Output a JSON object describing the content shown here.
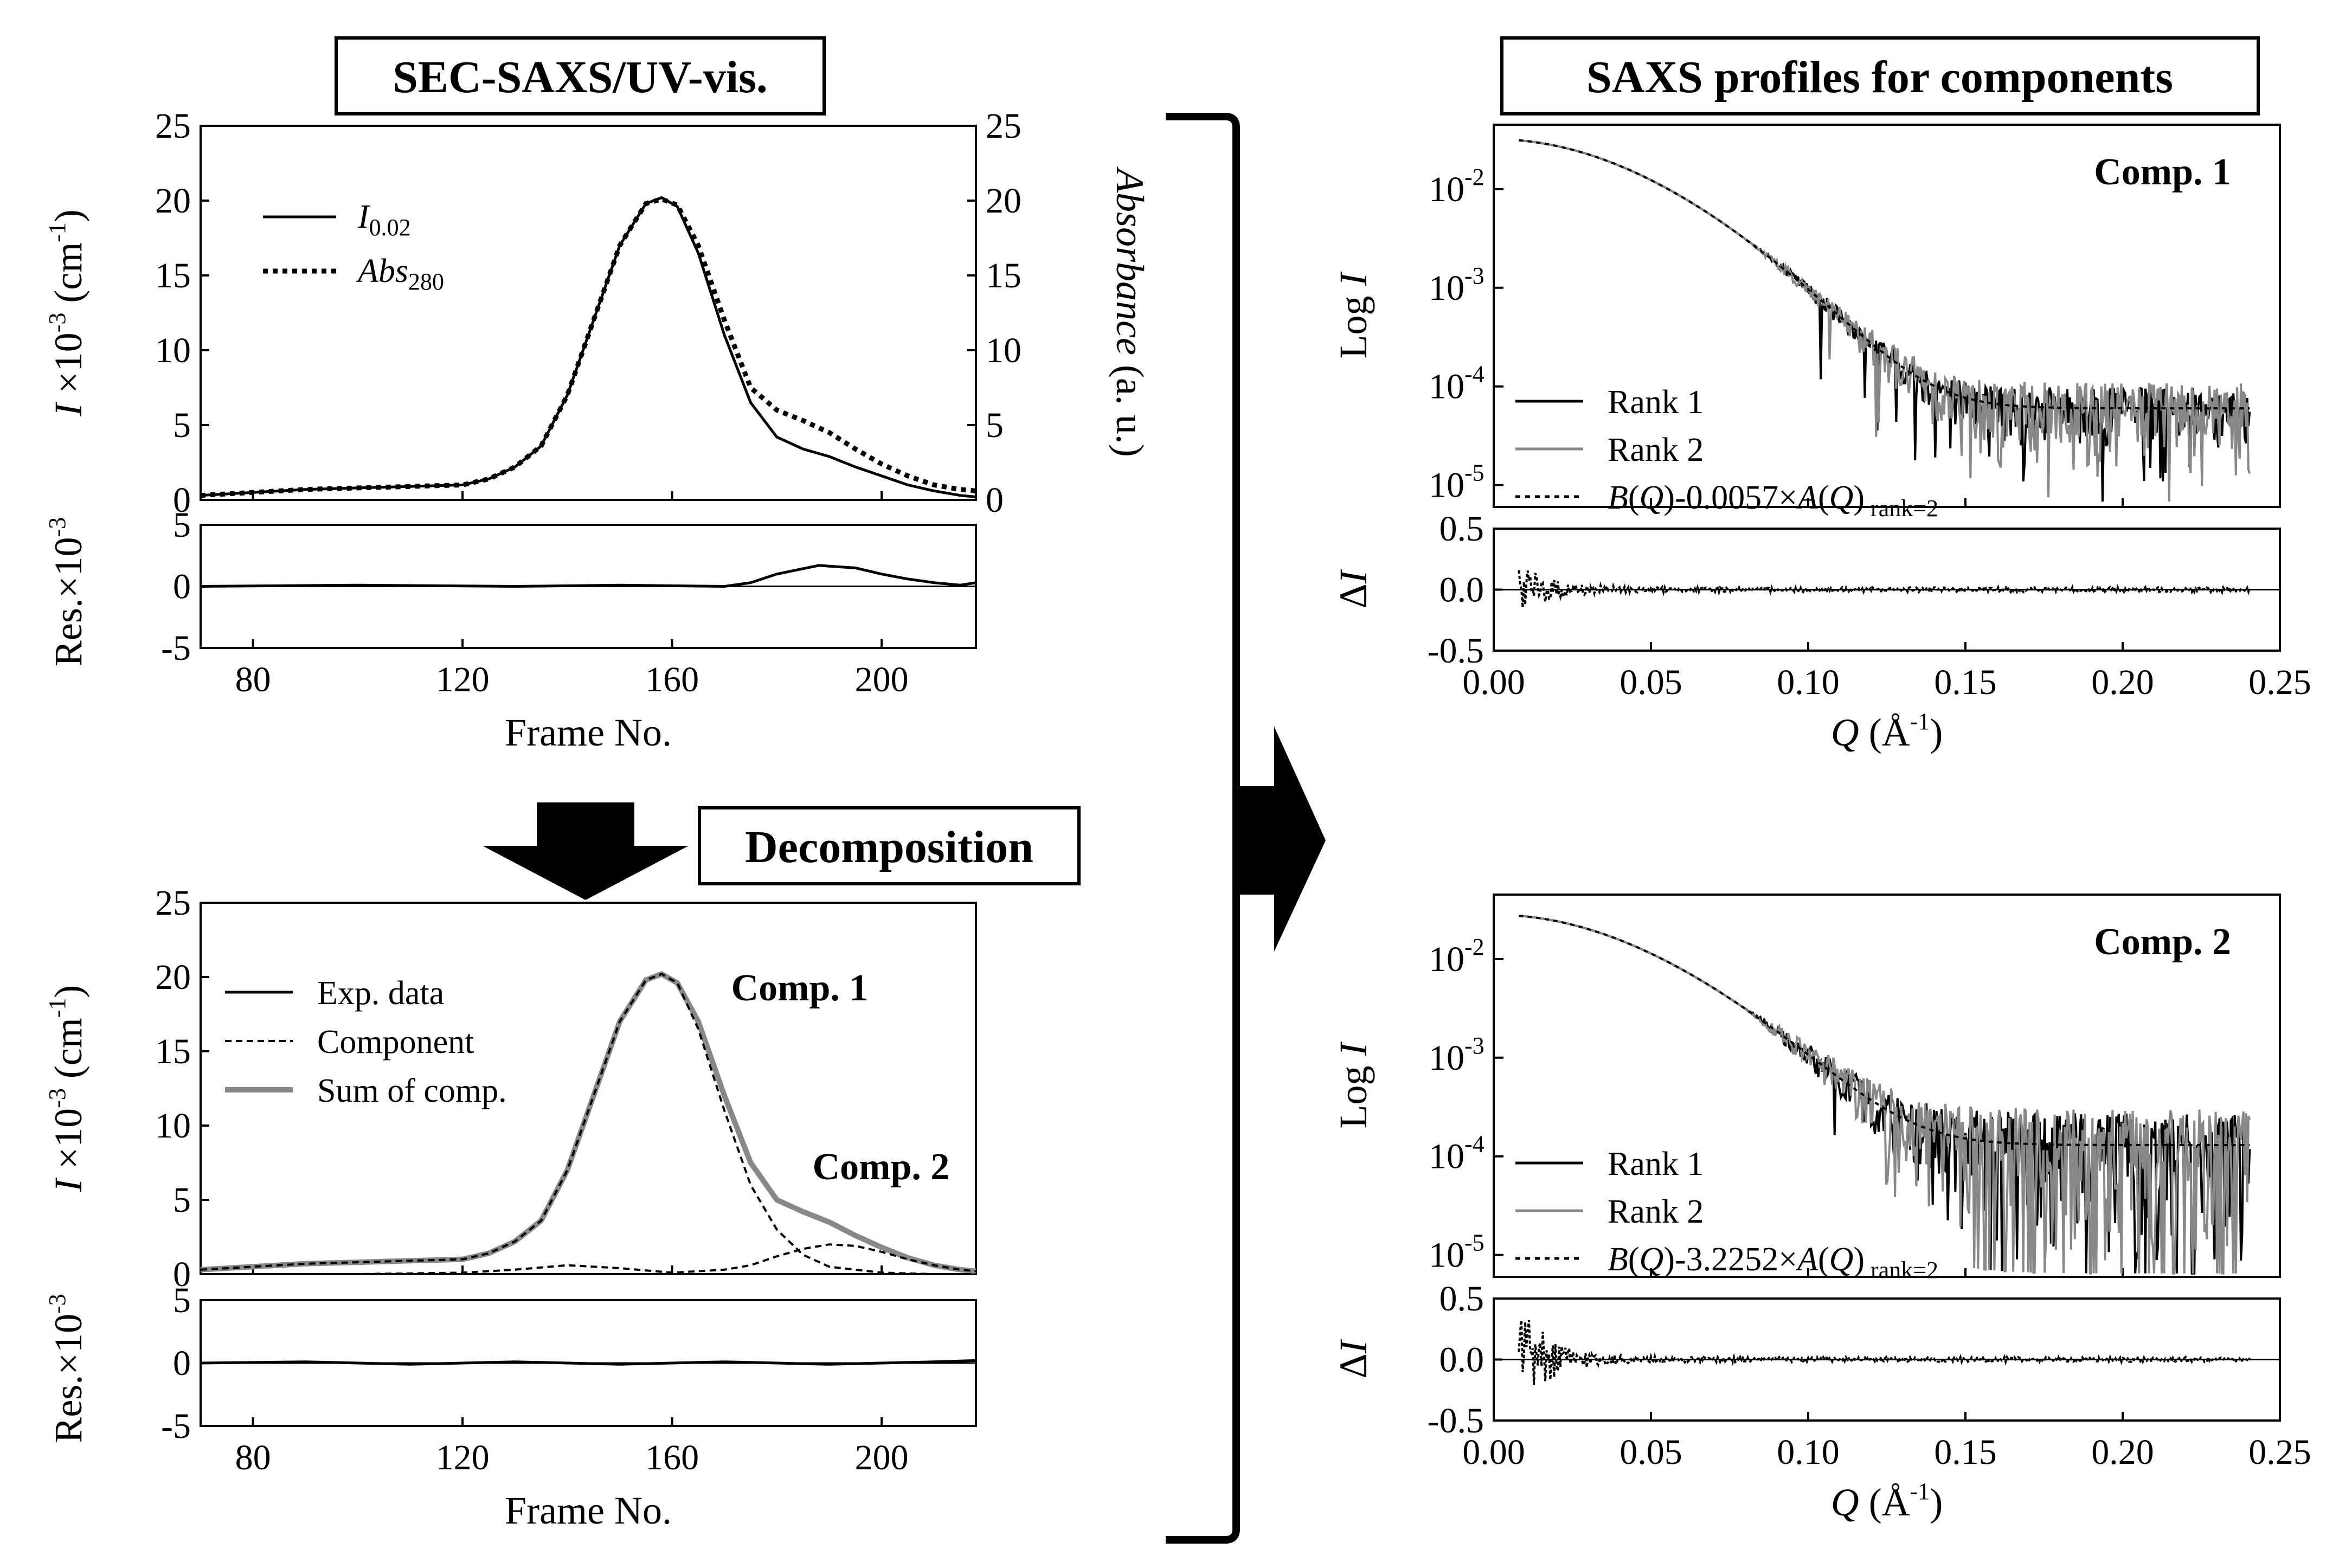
{
  "panel_titles": {
    "sec_saxs": "SEC-SAXS/UV-vis.",
    "decomposition": "Decomposition",
    "saxs_profiles": "SAXS profiles for components"
  },
  "colors": {
    "black": "#000000",
    "gray": "#888888"
  },
  "chart_data": [
    {
      "id": "elution",
      "type": "line",
      "xlabel": "Frame No.",
      "ylabel": "I ×10^-3 (cm^-1)",
      "ylabel2": "Absorbance (a. u.)",
      "xlim": [
        70,
        218
      ],
      "ylim": [
        0,
        25
      ],
      "xticks": [
        "80",
        "120",
        "160",
        "200"
      ],
      "yticks": [
        "0",
        "5",
        "10",
        "15",
        "20",
        "25"
      ],
      "y2ticks": [
        "0",
        "5",
        "10",
        "15",
        "20",
        "25"
      ],
      "legend": [
        "I_0.02",
        "Abs_280"
      ],
      "series": [
        {
          "name": "I_0.02",
          "style": "solid",
          "x": [
            70,
            80,
            90,
            100,
            110,
            120,
            125,
            130,
            135,
            140,
            145,
            150,
            155,
            158,
            161,
            165,
            170,
            175,
            180,
            185,
            190,
            195,
            200,
            205,
            210,
            215,
            218
          ],
          "y": [
            0.3,
            0.5,
            0.7,
            0.8,
            0.9,
            1.0,
            1.4,
            2.2,
            3.6,
            7.0,
            12.0,
            17.0,
            19.8,
            20.2,
            19.6,
            16.5,
            11.0,
            6.5,
            4.2,
            3.4,
            2.9,
            2.2,
            1.6,
            1.0,
            0.6,
            0.3,
            0.2
          ]
        },
        {
          "name": "Abs_280",
          "style": "dotted",
          "x": [
            70,
            80,
            90,
            100,
            110,
            120,
            125,
            130,
            135,
            140,
            145,
            150,
            155,
            158,
            161,
            165,
            170,
            175,
            180,
            185,
            190,
            195,
            200,
            205,
            210,
            215,
            218
          ],
          "y": [
            0.3,
            0.5,
            0.7,
            0.8,
            0.9,
            1.0,
            1.4,
            2.2,
            3.6,
            7.0,
            12.0,
            17.0,
            19.8,
            20.1,
            19.7,
            17.0,
            12.0,
            7.5,
            6.0,
            5.3,
            4.5,
            3.4,
            2.4,
            1.6,
            1.0,
            0.7,
            0.6
          ]
        }
      ],
      "residual": {
        "ylabel": "Res.×10^-3",
        "ylim": [
          -5,
          5
        ],
        "yticks": [
          "-5",
          "0",
          "5"
        ],
        "x": [
          70,
          100,
          130,
          150,
          170,
          175,
          180,
          188,
          195,
          200,
          205,
          210,
          215,
          218
        ],
        "y": [
          0,
          0.1,
          0,
          0.1,
          0,
          0.3,
          1.0,
          1.7,
          1.5,
          1.0,
          0.6,
          0.3,
          0.1,
          0.3
        ]
      }
    },
    {
      "id": "decomposition",
      "type": "line",
      "xlabel": "Frame No.",
      "ylabel": "I ×10^-3 (cm^-1)",
      "xlim": [
        70,
        218
      ],
      "ylim": [
        0,
        25
      ],
      "xticks": [
        "80",
        "120",
        "160",
        "200"
      ],
      "yticks": [
        "0",
        "5",
        "10",
        "15",
        "20",
        "25"
      ],
      "legend": [
        "Exp. data",
        "Component",
        "Sum of comp."
      ],
      "annotations": [
        "Comp. 1",
        "Comp. 2"
      ],
      "series": [
        {
          "name": "Exp. data",
          "style": "solid",
          "x": [
            70,
            80,
            90,
            100,
            110,
            120,
            125,
            130,
            135,
            140,
            145,
            150,
            155,
            158,
            161,
            165,
            170,
            175,
            180,
            185,
            190,
            195,
            200,
            205,
            210,
            215,
            218
          ],
          "y": [
            0.3,
            0.5,
            0.7,
            0.8,
            0.9,
            1.0,
            1.4,
            2.2,
            3.6,
            7.0,
            12.0,
            17.0,
            19.8,
            20.2,
            19.6,
            17.0,
            12.0,
            7.5,
            5.0,
            4.2,
            3.5,
            2.6,
            1.8,
            1.1,
            0.6,
            0.3,
            0.2
          ]
        },
        {
          "name": "Sum of comp.",
          "style": "gray",
          "x": [
            70,
            80,
            90,
            100,
            110,
            120,
            125,
            130,
            135,
            140,
            145,
            150,
            155,
            158,
            161,
            165,
            170,
            175,
            180,
            185,
            190,
            195,
            200,
            205,
            210,
            215,
            218
          ],
          "y": [
            0.3,
            0.5,
            0.7,
            0.8,
            0.9,
            1.0,
            1.4,
            2.2,
            3.6,
            7.0,
            12.0,
            17.0,
            19.8,
            20.2,
            19.6,
            17.0,
            12.0,
            7.5,
            5.0,
            4.2,
            3.5,
            2.6,
            1.8,
            1.1,
            0.6,
            0.3,
            0.2
          ]
        },
        {
          "name": "Comp. 1",
          "style": "dashed",
          "x": [
            70,
            80,
            90,
            100,
            110,
            120,
            125,
            130,
            135,
            140,
            145,
            150,
            155,
            158,
            161,
            165,
            170,
            175,
            180,
            185,
            190,
            200,
            210,
            218
          ],
          "y": [
            0.3,
            0.5,
            0.7,
            0.8,
            0.9,
            1.0,
            1.4,
            2.2,
            3.6,
            7.0,
            12.0,
            17.0,
            19.8,
            20.2,
            19.6,
            16.5,
            11.0,
            6.0,
            3.0,
            1.3,
            0.5,
            0.1,
            0.0,
            0.0
          ]
        },
        {
          "name": "Comp. 2",
          "style": "dashed",
          "x": [
            70,
            100,
            120,
            130,
            140,
            150,
            160,
            170,
            175,
            180,
            185,
            190,
            195,
            200,
            205,
            210,
            215,
            218
          ],
          "y": [
            0.0,
            0.0,
            0.1,
            0.3,
            0.6,
            0.4,
            0.1,
            0.3,
            0.6,
            1.2,
            1.7,
            2.0,
            1.9,
            1.5,
            1.0,
            0.6,
            0.3,
            0.2
          ]
        }
      ],
      "residual": {
        "ylabel": "Res.×10^-3",
        "ylim": [
          -5,
          5
        ],
        "yticks": [
          "-5",
          "0",
          "5"
        ],
        "x": [
          70,
          90,
          110,
          130,
          150,
          170,
          190,
          210,
          218
        ],
        "y": [
          0,
          0.1,
          -0.1,
          0.1,
          -0.1,
          0.1,
          -0.1,
          0.1,
          0.2
        ]
      }
    },
    {
      "id": "saxs_comp1",
      "type": "line",
      "log_y": true,
      "xlabel": "Q (Å^-1)",
      "ylabel": "Log I",
      "xlim": [
        0,
        0.25
      ],
      "ylim": [
        6e-06,
        0.045
      ],
      "xticks": [
        "0.00",
        "0.05",
        "0.10",
        "0.15",
        "0.20",
        "0.25"
      ],
      "yticks": [
        "10^-5",
        "10^-4",
        "10^-3",
        "10^-2"
      ],
      "annotation": "Comp. 1",
      "legend": [
        "Rank 1",
        "Rank 2",
        "B(Q)-0.0057×A(Q) rank=2"
      ],
      "coefficient": "0.0057",
      "model": {
        "I0": 0.032,
        "q0": 0.06,
        "bg": 6e-05,
        "noise": 0.6,
        "noise2": 0.8
      },
      "residual": {
        "ylabel": "ΔI",
        "ylim": [
          -0.5,
          0.5
        ],
        "yticks": [
          "-0.5",
          "0.0",
          "0.5"
        ],
        "amp": 0.2
      }
    },
    {
      "id": "saxs_comp2",
      "type": "line",
      "log_y": true,
      "xlabel": "Q (Å^-1)",
      "ylabel": "Log I",
      "xlim": [
        0,
        0.25
      ],
      "ylim": [
        6e-06,
        0.045
      ],
      "xticks": [
        "0.00",
        "0.05",
        "0.10",
        "0.15",
        "0.20",
        "0.25"
      ],
      "yticks": [
        "10^-5",
        "10^-4",
        "10^-3",
        "10^-2"
      ],
      "annotation": "Comp. 2",
      "legend": [
        "Rank 1",
        "Rank 2",
        "B(Q)-3.2252×A(Q) rank=2"
      ],
      "coefficient": "3.2252",
      "model": {
        "I0": 0.028,
        "q0": 0.062,
        "bg": 0.00013,
        "noise": 1.1,
        "noise2": 1.3
      },
      "residual": {
        "ylabel": "ΔI",
        "ylim": [
          -0.5,
          0.5
        ],
        "yticks": [
          "-0.5",
          "0.0",
          "0.5"
        ],
        "amp": 0.45
      }
    }
  ]
}
